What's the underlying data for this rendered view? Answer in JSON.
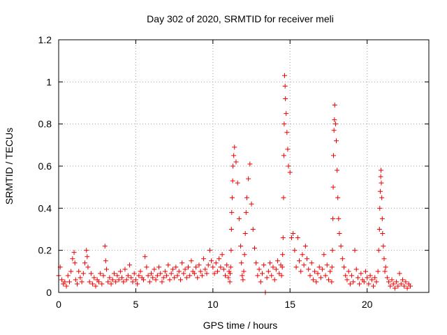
{
  "chart_data": {
    "type": "scatter",
    "title": "Day 302 of 2020, SRMTID for receiver meli",
    "xlabel": "GPS time / hours",
    "ylabel": "SRMTID / TECUs",
    "xlim": [
      0,
      24
    ],
    "ylim": [
      0,
      1.2
    ],
    "x_ticks": [
      0,
      5,
      10,
      15,
      20
    ],
    "x_tick_labels": [
      "0",
      "5",
      "10",
      "15",
      "20"
    ],
    "y_ticks": [
      0,
      0.2,
      0.4,
      0.6,
      0.8,
      1.0,
      1.2
    ],
    "y_tick_labels": [
      "0",
      "0.2",
      "0.4",
      "0.6",
      "0.8",
      "1",
      "1.2"
    ],
    "grid": true,
    "marker": "+",
    "color": "#ee0000",
    "series": [
      {
        "name": "SRMTID",
        "x": [
          0.0,
          0.1,
          0.2,
          0.3,
          0.4,
          0.5,
          0.6,
          0.7,
          0.8,
          0.9,
          1.0,
          1.05,
          1.1,
          1.2,
          1.3,
          1.4,
          1.5,
          1.6,
          1.7,
          1.8,
          1.85,
          1.9,
          2.0,
          2.1,
          2.2,
          2.3,
          2.4,
          2.5,
          2.6,
          2.7,
          2.8,
          2.9,
          3.0,
          3.05,
          3.1,
          3.2,
          3.3,
          3.4,
          3.5,
          3.6,
          3.7,
          3.8,
          3.9,
          4.0,
          4.1,
          4.2,
          4.3,
          4.4,
          4.5,
          4.6,
          4.7,
          4.8,
          4.9,
          5.0,
          5.1,
          5.2,
          5.3,
          5.4,
          5.5,
          5.6,
          5.7,
          5.8,
          5.9,
          6.0,
          6.1,
          6.2,
          6.3,
          6.4,
          6.5,
          6.6,
          6.7,
          6.8,
          6.9,
          7.0,
          7.1,
          7.2,
          7.3,
          7.4,
          7.5,
          7.6,
          7.7,
          7.8,
          7.9,
          8.0,
          8.1,
          8.2,
          8.3,
          8.4,
          8.5,
          8.6,
          8.7,
          8.8,
          8.9,
          9.0,
          9.1,
          9.2,
          9.3,
          9.4,
          9.5,
          9.6,
          9.7,
          9.8,
          9.9,
          10.0,
          10.1,
          10.2,
          10.3,
          10.4,
          10.5,
          10.6,
          10.7,
          10.8,
          10.9,
          11.0,
          11.05,
          11.1,
          11.12,
          11.15,
          11.18,
          11.2,
          11.22,
          11.25,
          11.28,
          11.3,
          11.35,
          11.4,
          11.5,
          11.6,
          11.7,
          11.8,
          11.85,
          11.9,
          11.95,
          12.0,
          12.05,
          12.1,
          12.15,
          12.2,
          12.3,
          12.4,
          12.5,
          12.6,
          12.7,
          12.8,
          12.9,
          13.0,
          13.1,
          13.2,
          13.3,
          13.4,
          13.5,
          13.6,
          13.7,
          13.8,
          13.9,
          14.0,
          14.1,
          14.2,
          14.3,
          14.4,
          14.45,
          14.5,
          14.52,
          14.55,
          14.58,
          14.6,
          14.62,
          14.65,
          14.68,
          14.7,
          14.75,
          14.8,
          14.85,
          14.9,
          15.0,
          15.1,
          15.2,
          15.3,
          15.4,
          15.5,
          15.6,
          15.7,
          15.8,
          15.9,
          16.0,
          16.1,
          16.2,
          16.3,
          16.4,
          16.5,
          16.6,
          16.7,
          16.8,
          16.9,
          17.0,
          17.1,
          17.2,
          17.3,
          17.4,
          17.5,
          17.6,
          17.7,
          17.72,
          17.75,
          17.78,
          17.8,
          17.82,
          17.85,
          17.88,
          17.9,
          17.95,
          18.0,
          18.05,
          18.1,
          18.15,
          18.2,
          18.3,
          18.4,
          18.5,
          18.6,
          18.7,
          18.8,
          18.9,
          19.0,
          19.1,
          19.2,
          19.3,
          19.4,
          19.5,
          19.6,
          19.7,
          19.8,
          19.9,
          20.0,
          20.1,
          20.2,
          20.3,
          20.4,
          20.5,
          20.6,
          20.7,
          20.75,
          20.8,
          20.82,
          20.85,
          20.88,
          20.9,
          20.92,
          20.95,
          20.98,
          21.0,
          21.05,
          21.1,
          21.15,
          21.2,
          21.3,
          21.4,
          21.5,
          21.6,
          21.7,
          21.8,
          21.9,
          22.0,
          22.1,
          22.2,
          22.3,
          22.4,
          22.5,
          22.6,
          22.7,
          22.8
        ],
        "y": [
          0.08,
          0.12,
          0.06,
          0.04,
          0.05,
          0.03,
          0.08,
          0.05,
          0.1,
          0.16,
          0.19,
          0.14,
          0.06,
          0.04,
          0.1,
          0.07,
          0.05,
          0.09,
          0.14,
          0.2,
          0.17,
          0.12,
          0.05,
          0.09,
          0.04,
          0.07,
          0.03,
          0.06,
          0.05,
          0.09,
          0.04,
          0.08,
          0.22,
          0.15,
          0.11,
          0.05,
          0.07,
          0.04,
          0.06,
          0.09,
          0.05,
          0.08,
          0.06,
          0.1,
          0.07,
          0.05,
          0.11,
          0.06,
          0.08,
          0.13,
          0.07,
          0.05,
          0.09,
          0.06,
          0.04,
          0.08,
          0.1,
          0.07,
          0.06,
          0.17,
          0.12,
          0.08,
          0.05,
          0.09,
          0.07,
          0.11,
          0.06,
          0.08,
          0.12,
          0.09,
          0.05,
          0.07,
          0.1,
          0.08,
          0.13,
          0.06,
          0.09,
          0.11,
          0.07,
          0.12,
          0.08,
          0.1,
          0.06,
          0.14,
          0.09,
          0.11,
          0.07,
          0.12,
          0.08,
          0.15,
          0.1,
          0.09,
          0.12,
          0.07,
          0.13,
          0.1,
          0.08,
          0.16,
          0.11,
          0.09,
          0.13,
          0.2,
          0.15,
          0.12,
          0.09,
          0.14,
          0.1,
          0.16,
          0.12,
          0.18,
          0.11,
          0.08,
          0.13,
          0.07,
          0.1,
          0.05,
          0.09,
          0.12,
          0.2,
          0.3,
          0.38,
          0.45,
          0.53,
          0.6,
          0.65,
          0.69,
          0.62,
          0.52,
          0.35,
          0.22,
          0.14,
          0.08,
          0.06,
          0.1,
          0.18,
          0.28,
          0.38,
          0.45,
          0.54,
          0.61,
          0.42,
          0.3,
          0.21,
          0.14,
          0.08,
          0.11,
          0.05,
          0.09,
          0.13,
          0.0,
          0.07,
          0.1,
          0.14,
          0.08,
          0.12,
          0.06,
          0.11,
          0.15,
          0.09,
          0.13,
          0.08,
          0.12,
          0.18,
          0.26,
          0.45,
          0.65,
          0.8,
          1.03,
          0.98,
          0.92,
          0.85,
          0.76,
          0.68,
          0.6,
          0.57,
          0.26,
          0.28,
          0.2,
          0.12,
          0.26,
          0.15,
          0.1,
          0.18,
          0.13,
          0.22,
          0.16,
          0.11,
          0.08,
          0.14,
          0.06,
          0.1,
          0.05,
          0.09,
          0.12,
          0.07,
          0.11,
          0.18,
          0.08,
          0.13,
          0.06,
          0.1,
          0.05,
          0.12,
          0.2,
          0.35,
          0.5,
          0.65,
          0.77,
          0.82,
          0.89,
          0.8,
          0.72,
          0.58,
          0.45,
          0.35,
          0.28,
          0.22,
          0.16,
          0.12,
          0.08,
          0.06,
          0.1,
          0.04,
          0.08,
          0.05,
          0.2,
          0.11,
          0.07,
          0.04,
          0.09,
          0.06,
          0.05,
          0.1,
          0.07,
          0.04,
          0.08,
          0.06,
          0.03,
          0.07,
          0.05,
          0.1,
          0.2,
          0.3,
          0.4,
          0.48,
          0.55,
          0.58,
          0.52,
          0.45,
          0.35,
          0.28,
          0.22,
          0.16,
          0.1,
          0.12,
          0.07,
          0.05,
          0.03,
          0.06,
          0.04,
          0.02,
          0.05,
          0.03,
          0.09,
          0.04,
          0.06,
          0.03,
          0.05,
          0.02,
          0.04,
          0.03
        ]
      }
    ]
  }
}
